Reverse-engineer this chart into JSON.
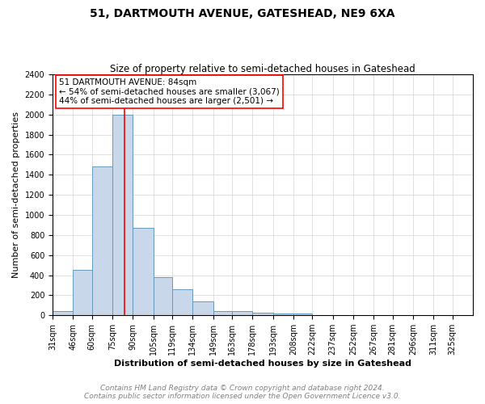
{
  "title": "51, DARTMOUTH AVENUE, GATESHEAD, NE9 6XA",
  "subtitle": "Size of property relative to semi-detached houses in Gateshead",
  "xlabel": "Distribution of semi-detached houses by size in Gateshead",
  "ylabel": "Number of semi-detached properties",
  "categories": [
    "31sqm",
    "46sqm",
    "60sqm",
    "75sqm",
    "90sqm",
    "105sqm",
    "119sqm",
    "134sqm",
    "149sqm",
    "163sqm",
    "178sqm",
    "193sqm",
    "208sqm",
    "222sqm",
    "237sqm",
    "252sqm",
    "267sqm",
    "281sqm",
    "296sqm",
    "311sqm",
    "325sqm"
  ],
  "values": [
    40,
    450,
    1480,
    2000,
    870,
    380,
    260,
    135,
    40,
    40,
    25,
    20,
    20,
    0,
    0,
    0,
    0,
    0,
    0,
    0,
    0
  ],
  "bar_color": "#c8d8ea",
  "bar_edge_color": "#6699bb",
  "ylim": [
    0,
    2400
  ],
  "yticks": [
    0,
    200,
    400,
    600,
    800,
    1000,
    1200,
    1400,
    1600,
    1800,
    2000,
    2200,
    2400
  ],
  "red_line_x": 84,
  "bin_edges": [
    31,
    46,
    60,
    75,
    90,
    105,
    119,
    134,
    149,
    163,
    178,
    193,
    208,
    222,
    237,
    252,
    267,
    281,
    296,
    311,
    325,
    340
  ],
  "annotation_title": "51 DARTMOUTH AVENUE: 84sqm",
  "annotation_line1": "← 54% of semi-detached houses are smaller (3,067)",
  "annotation_line2": "44% of semi-detached houses are larger (2,501) →",
  "footer_line1": "Contains HM Land Registry data © Crown copyright and database right 2024.",
  "footer_line2": "Contains public sector information licensed under the Open Government Licence v3.0.",
  "title_fontsize": 10,
  "subtitle_fontsize": 8.5,
  "axis_label_fontsize": 8,
  "tick_fontsize": 7,
  "annotation_fontsize": 7.5,
  "footer_fontsize": 6.5
}
